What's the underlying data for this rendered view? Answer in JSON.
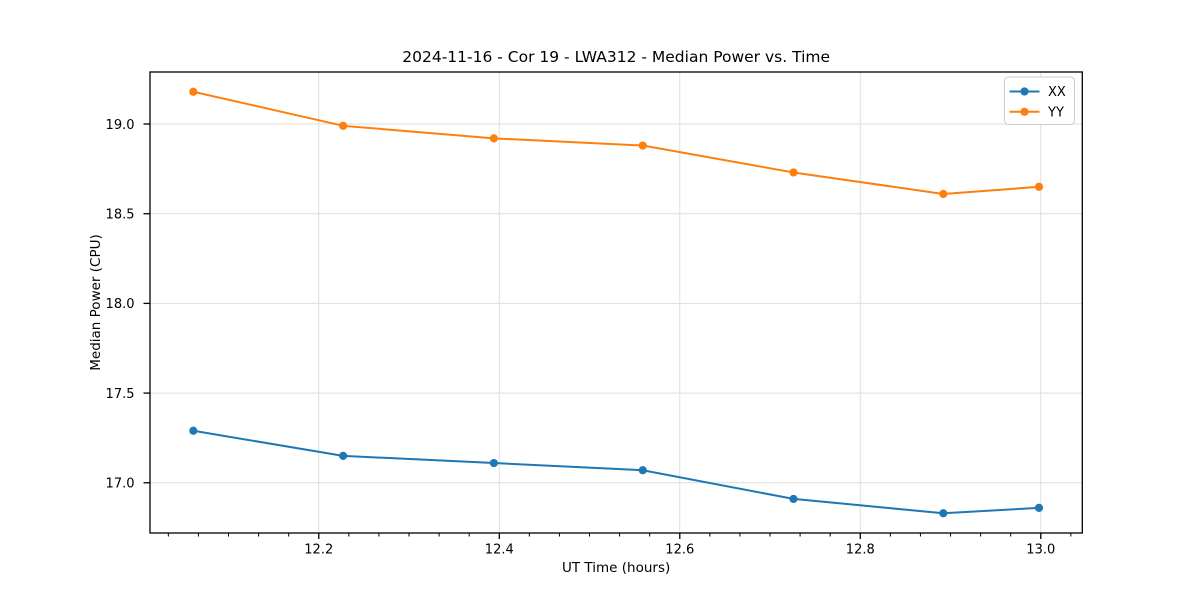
{
  "chart_data": {
    "type": "line",
    "title": "2024-11-16 - Cor 19 - LWA312 - Median Power vs. Time",
    "xlabel": "UT Time (hours)",
    "ylabel": "Median Power (CPU)",
    "x": [
      12.061,
      12.227,
      12.394,
      12.559,
      12.726,
      12.892,
      12.998
    ],
    "series": [
      {
        "name": "XX",
        "color": "#1f77b4",
        "values": [
          17.29,
          17.15,
          17.11,
          17.07,
          16.91,
          16.83,
          16.86
        ]
      },
      {
        "name": "YY",
        "color": "#ff7f0e",
        "values": [
          19.18,
          18.99,
          18.92,
          18.88,
          18.73,
          18.61,
          18.65
        ]
      }
    ],
    "xlim": [
      12.013,
      13.046
    ],
    "ylim": [
      16.72,
      19.29
    ],
    "xticks": [
      12.2,
      12.4,
      12.6,
      12.8,
      13.0
    ],
    "yticks": [
      17.0,
      17.5,
      18.0,
      18.5,
      19.0
    ],
    "x_minor_step": 0.0333333,
    "grid": true,
    "grid_color": "#dedede",
    "spine_color": "#000000",
    "legend_position": "upper right",
    "legend_entries": [
      "XX",
      "YY"
    ]
  }
}
